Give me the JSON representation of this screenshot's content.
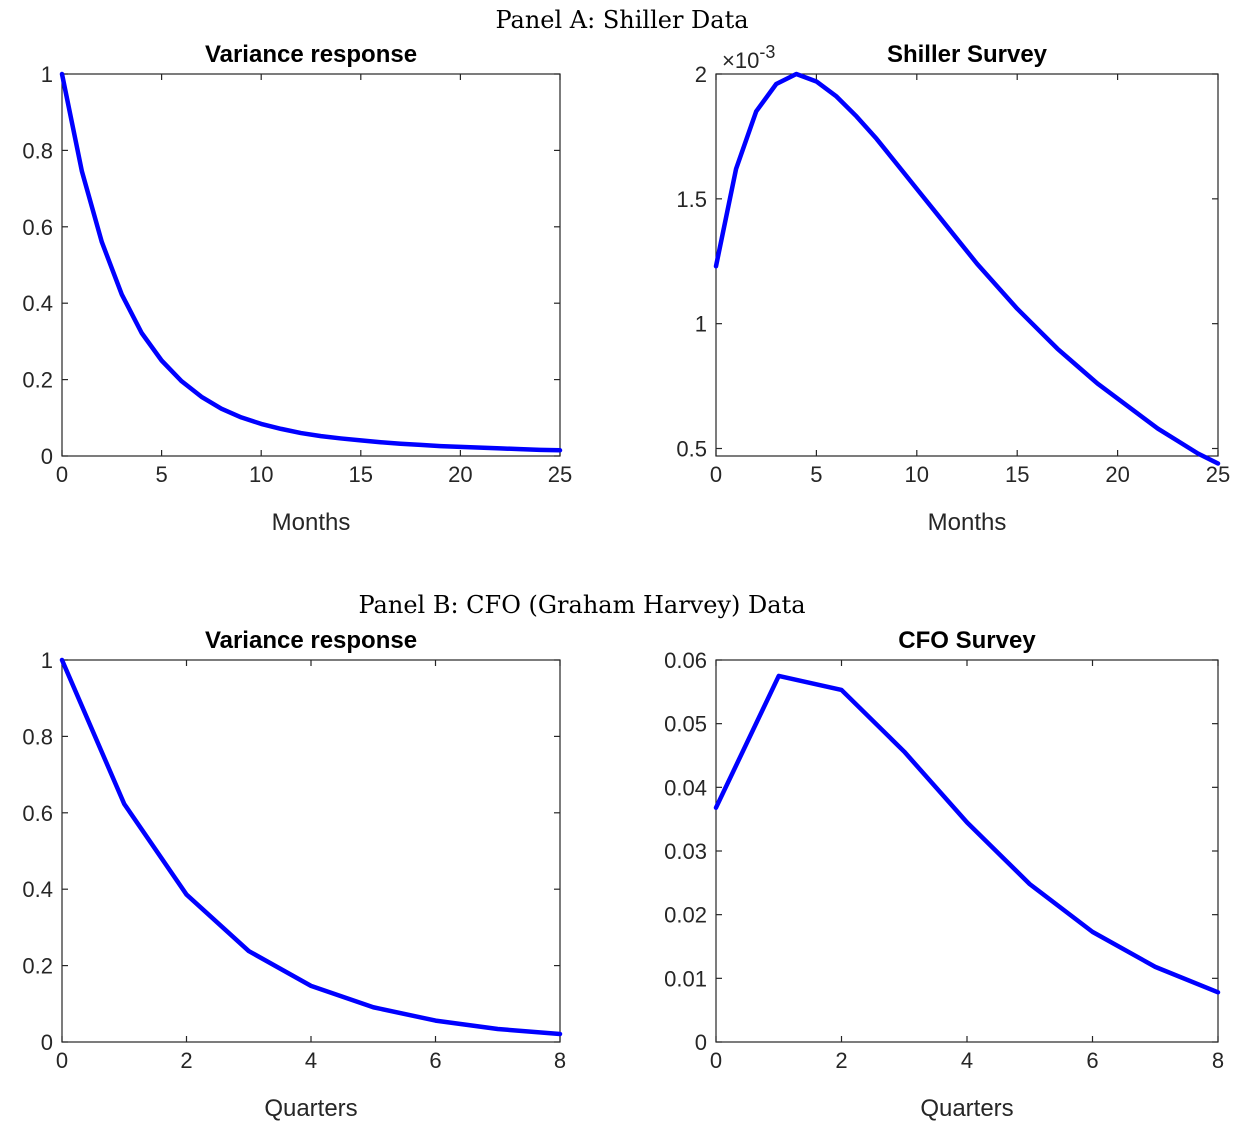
{
  "panels": [
    {
      "title": "Panel A: Shiller Data"
    },
    {
      "title": "Panel B: CFO (Graham Harvey) Data"
    }
  ],
  "colors": {
    "line": "#0000ff",
    "axis": "#262626"
  },
  "chart_data": [
    {
      "type": "line",
      "title": "Variance response",
      "xlabel": "Months",
      "ylabel": "",
      "xlim": [
        0,
        25
      ],
      "ylim": [
        0,
        1
      ],
      "xticks": [
        0,
        5,
        10,
        15,
        20,
        25
      ],
      "xtick_labels": [
        "0",
        "5",
        "10",
        "15",
        "20",
        "25"
      ],
      "yticks": [
        0,
        0.2,
        0.4,
        0.6,
        0.8,
        1
      ],
      "ytick_labels": [
        "0",
        "0.2",
        "0.4",
        "0.6",
        "0.8",
        "1"
      ],
      "grid": false,
      "series": [
        {
          "x": [
            0,
            1,
            2,
            3,
            4,
            5,
            6,
            7,
            8,
            9,
            10,
            11,
            12,
            13,
            14,
            15,
            16,
            17,
            18,
            19,
            20,
            21,
            22,
            23,
            24,
            25
          ],
          "values": [
            1.0,
            0.745,
            0.56,
            0.423,
            0.322,
            0.25,
            0.196,
            0.155,
            0.124,
            0.101,
            0.084,
            0.071,
            0.06,
            0.052,
            0.046,
            0.041,
            0.036,
            0.032,
            0.029,
            0.026,
            0.024,
            0.022,
            0.02,
            0.018,
            0.016,
            0.015
          ]
        }
      ]
    },
    {
      "type": "line",
      "title": "Shiller Survey",
      "xlabel": "Months",
      "ylabel": "",
      "xlim": [
        0,
        25
      ],
      "ylim": [
        0.00047,
        0.002
      ],
      "xticks": [
        0,
        5,
        10,
        15,
        20,
        25
      ],
      "xtick_labels": [
        "0",
        "5",
        "10",
        "15",
        "20",
        "25"
      ],
      "yticks": [
        0.0005,
        0.001,
        0.0015,
        0.002
      ],
      "ytick_labels": [
        "0.5",
        "1",
        "1.5",
        "2"
      ],
      "exponent_label": "×10",
      "exponent_power": "-3",
      "grid": false,
      "series": [
        {
          "x": [
            0,
            1,
            2,
            3,
            4,
            5,
            6,
            7,
            8,
            9,
            10,
            11,
            12,
            13,
            14,
            15,
            16,
            17,
            18,
            19,
            20,
            21,
            22,
            23,
            24,
            25
          ],
          "values": [
            0.00123,
            0.00162,
            0.00185,
            0.00196,
            0.002,
            0.00197,
            0.00191,
            0.00183,
            0.00174,
            0.00164,
            0.00154,
            0.00144,
            0.00134,
            0.00124,
            0.00115,
            0.00106,
            0.00098,
            0.0009,
            0.00083,
            0.00076,
            0.0007,
            0.00064,
            0.00058,
            0.00053,
            0.00048,
            0.00044
          ]
        }
      ]
    },
    {
      "type": "line",
      "title": "Variance response",
      "xlabel": "Quarters",
      "ylabel": "",
      "xlim": [
        0,
        8
      ],
      "ylim": [
        0,
        1
      ],
      "xticks": [
        0,
        2,
        4,
        6,
        8
      ],
      "xtick_labels": [
        "0",
        "2",
        "4",
        "6",
        "8"
      ],
      "yticks": [
        0,
        0.2,
        0.4,
        0.6,
        0.8,
        1
      ],
      "ytick_labels": [
        "0",
        "0.2",
        "0.4",
        "0.6",
        "0.8",
        "1"
      ],
      "grid": false,
      "series": [
        {
          "x": [
            0,
            1,
            2,
            3,
            4,
            5,
            6,
            7,
            8
          ],
          "values": [
            1.0,
            0.623,
            0.386,
            0.238,
            0.147,
            0.091,
            0.056,
            0.034,
            0.021
          ]
        }
      ]
    },
    {
      "type": "line",
      "title": "CFO Survey",
      "xlabel": "Quarters",
      "ylabel": "",
      "xlim": [
        0,
        8
      ],
      "ylim": [
        0,
        0.06
      ],
      "xticks": [
        0,
        2,
        4,
        6,
        8
      ],
      "xtick_labels": [
        "0",
        "2",
        "4",
        "6",
        "8"
      ],
      "yticks": [
        0,
        0.01,
        0.02,
        0.03,
        0.04,
        0.05,
        0.06
      ],
      "ytick_labels": [
        "0",
        "0.01",
        "0.02",
        "0.03",
        "0.04",
        "0.05",
        "0.06"
      ],
      "grid": false,
      "series": [
        {
          "x": [
            0,
            1,
            2,
            3,
            4,
            5,
            6,
            7,
            8
          ],
          "values": [
            0.0368,
            0.0575,
            0.0553,
            0.0456,
            0.0345,
            0.0248,
            0.0173,
            0.0118,
            0.0078
          ]
        }
      ]
    }
  ]
}
